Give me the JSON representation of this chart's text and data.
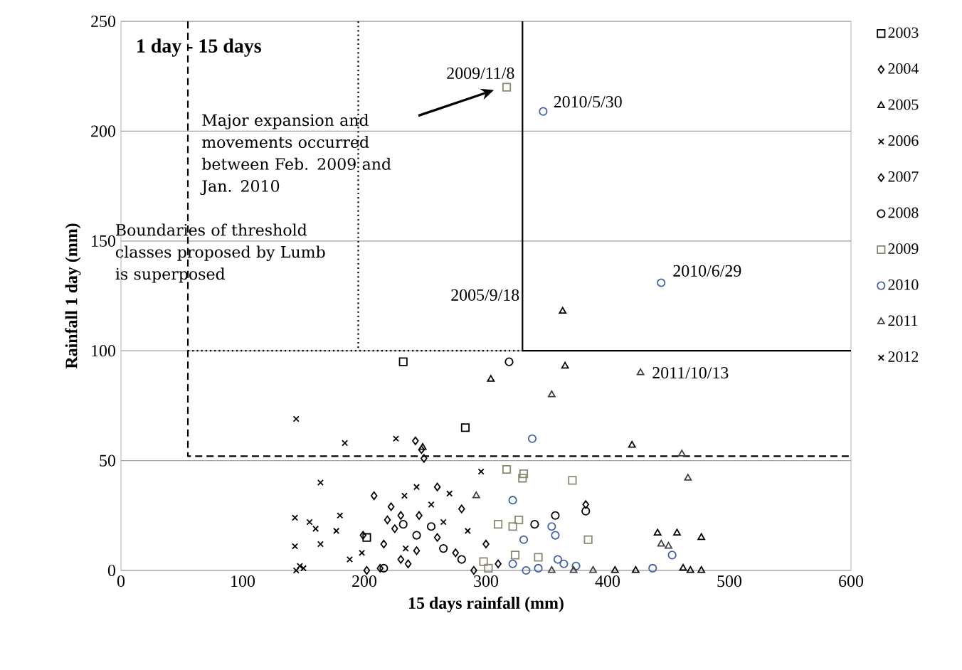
{
  "chart_data": {
    "type": "scatter",
    "xlabel": "15 days rainfall (mm)",
    "ylabel": "Rainfall 1 day (mm)",
    "xlim": [
      0,
      600
    ],
    "ylim": [
      0,
      250
    ],
    "xticks": [
      0,
      100,
      200,
      300,
      400,
      500,
      600
    ],
    "yticks": [
      0,
      50,
      100,
      150,
      200,
      250
    ],
    "grid": "y",
    "legend": "right",
    "series": [
      {
        "name": "2003",
        "color": "#000000",
        "marker": "square",
        "x": [
          232,
          283,
          202
        ],
        "values": [
          95,
          65,
          15
        ]
      },
      {
        "name": "2004",
        "color": "#000000",
        "marker": "diamond",
        "x": [
          242,
          247,
          230,
          216,
          243,
          236,
          382,
          290,
          260,
          275,
          300,
          310
        ],
        "values": [
          59,
          55,
          25,
          12,
          9,
          3,
          30,
          0,
          15,
          8,
          12,
          3
        ]
      },
      {
        "name": "2005",
        "color": "#000000",
        "marker": "triangle",
        "x": [
          363,
          365,
          304,
          420,
          248,
          441,
          457,
          477,
          406,
          423,
          462,
          468,
          477
        ],
        "values": [
          118,
          93,
          87,
          57,
          56,
          17,
          17,
          15,
          0,
          0,
          1,
          0,
          0
        ]
      },
      {
        "name": "2006",
        "color": "#000000",
        "marker": "cross",
        "x": [
          226,
          296,
          233,
          243,
          234,
          255,
          270,
          265,
          285
        ],
        "values": [
          60,
          45,
          34,
          38,
          10,
          30,
          35,
          22,
          18
        ]
      },
      {
        "name": "2007",
        "color": "#000000",
        "marker": "diamond",
        "x": [
          249,
          208,
          222,
          219,
          225,
          202,
          213,
          199,
          245,
          260,
          230,
          280
        ],
        "values": [
          51,
          34,
          29,
          23,
          19,
          0,
          1,
          16,
          25,
          38,
          5,
          28
        ]
      },
      {
        "name": "2008",
        "color": "#000000",
        "marker": "circle",
        "x": [
          319,
          382,
          357,
          340,
          232,
          243,
          216,
          265,
          280,
          255
        ],
        "values": [
          95,
          27,
          25,
          21,
          21,
          16,
          1,
          10,
          5,
          20
        ]
      },
      {
        "name": "2009",
        "color": "#8b8870",
        "marker": "square",
        "x": [
          317,
          317,
          331,
          330,
          371,
          384,
          310,
          327,
          322,
          298,
          302,
          324,
          343
        ],
        "values": [
          220,
          46,
          44,
          42,
          41,
          14,
          21,
          23,
          20,
          4,
          1,
          7,
          6
        ]
      },
      {
        "name": "2010",
        "color": "#4060a0",
        "marker": "circle",
        "x": [
          347,
          444,
          338,
          322,
          354,
          331,
          357,
          453,
          437,
          322,
          333,
          343,
          359,
          364,
          374
        ],
        "values": [
          209,
          131,
          60,
          32,
          20,
          14,
          16,
          7,
          1,
          3,
          0,
          1,
          5,
          3,
          2
        ]
      },
      {
        "name": "2011",
        "color": "#404040",
        "marker": "triangle",
        "x": [
          427,
          354,
          461,
          466,
          292,
          444,
          450,
          354,
          388,
          372
        ],
        "values": [
          90,
          80,
          53,
          42,
          34,
          12,
          11,
          0,
          0,
          0
        ]
      },
      {
        "name": "2012",
        "color": "#000000",
        "marker": "cross",
        "x": [
          144,
          184,
          164,
          143,
          155,
          160,
          180,
          177,
          164,
          143,
          188,
          198,
          144,
          147,
          150
        ],
        "values": [
          69,
          58,
          40,
          24,
          22,
          19,
          25,
          18,
          12,
          11,
          5,
          8,
          0,
          2,
          1
        ]
      },
      {
        "type": "line",
        "color": "#000000",
        "line_style": "dashed",
        "x": [
          55,
          55,
          600
        ],
        "values": [
          250,
          52,
          52
        ]
      },
      {
        "type": "line",
        "color": "#000000",
        "line_style": "dotted",
        "x": [
          195,
          195
        ],
        "values": [
          250,
          100
        ]
      },
      {
        "type": "line",
        "color": "#000000",
        "line_style": "dotted",
        "x": [
          55,
          330
        ],
        "values": [
          100,
          100
        ]
      },
      {
        "type": "line",
        "color": "#000000",
        "line_style": "solid",
        "x": [
          330,
          330,
          600
        ],
        "values": [
          250,
          100,
          100
        ]
      }
    ],
    "annotations": [
      "1 day - 15 days",
      {
        "text": "2009/11/8",
        "x": 317,
        "y": 220
      },
      {
        "text": "2010/5/30",
        "x": 347,
        "y": 209
      },
      "Major expansion and movements occurred between Feb. 2009 and Jan. 2010",
      {
        "text": "2005/9/18",
        "x": 363,
        "y": 118
      },
      {
        "text": "2010/6/29",
        "x": 444,
        "y": 131
      },
      "Boundaries of threshold classes proposed by Lumb is superposed",
      {
        "text": "2011/10/13",
        "x": 427,
        "y": 90
      }
    ]
  }
}
